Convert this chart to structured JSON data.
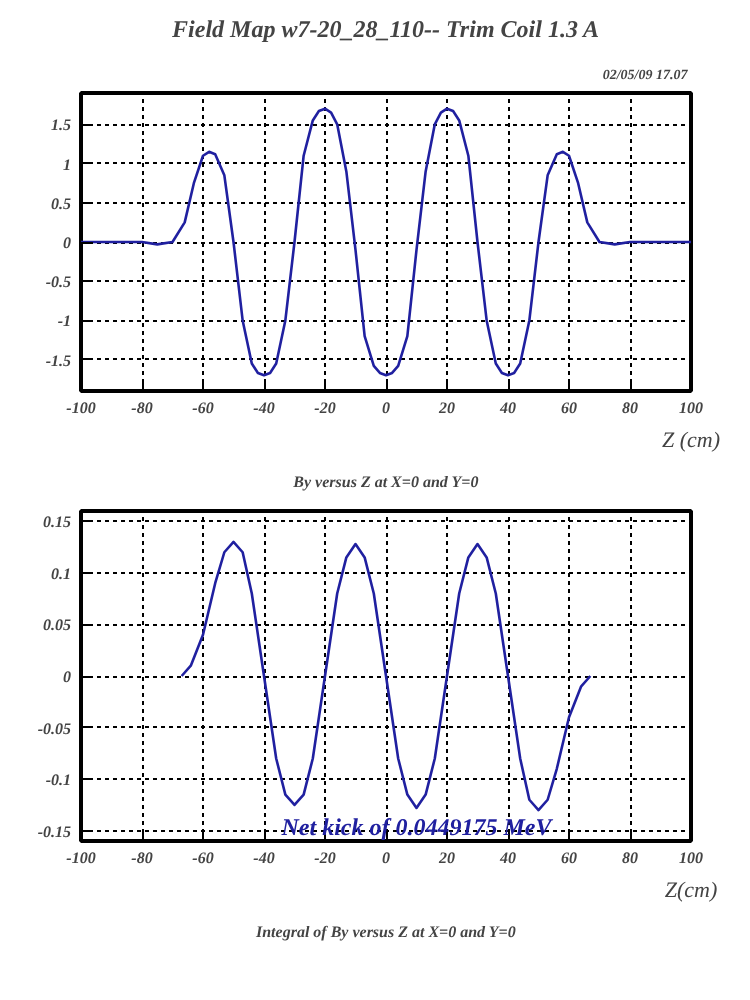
{
  "chart_data": [
    {
      "type": "line",
      "title": "Field Map w7-20_28_110-- Trim Coil 1.3 A",
      "xlabel": "Z (cm)",
      "annotations": [
        "By versus Z at X=0 and Y=0",
        "02/05/09  17.07"
      ],
      "xlim": [
        -100,
        100
      ],
      "ylim": [
        -1.9,
        1.9
      ],
      "xticks": [
        -100,
        -80,
        -60,
        -40,
        -20,
        0,
        20,
        40,
        60,
        80,
        100
      ],
      "yticks": [
        -1.5,
        -1,
        -0.5,
        0,
        0.5,
        1,
        1.5
      ],
      "grid": true,
      "line_style": "solid",
      "x": [
        -100,
        -80,
        -75,
        -70,
        -66,
        -63,
        -60,
        -58,
        -56,
        -53,
        -50,
        -47,
        -44,
        -42,
        -40,
        -38,
        -36,
        -33,
        -30,
        -27,
        -24,
        -22,
        -20,
        -18,
        -16,
        -13,
        -10,
        -7,
        -4,
        -2,
        0,
        2,
        4,
        7,
        10,
        13,
        16,
        18,
        20,
        22,
        24,
        27,
        30,
        33,
        36,
        38,
        40,
        42,
        44,
        47,
        50,
        53,
        56,
        58,
        60,
        63,
        66,
        70,
        75,
        80,
        100
      ],
      "series": [
        {
          "color": "#2020a0",
          "values": [
            0,
            0,
            -0.03,
            0,
            0.25,
            0.75,
            1.1,
            1.15,
            1.12,
            0.85,
            0,
            -1,
            -1.55,
            -1.67,
            -1.7,
            -1.67,
            -1.55,
            -1,
            0,
            1.1,
            1.55,
            1.67,
            1.7,
            1.65,
            1.5,
            0.9,
            -0.1,
            -1.2,
            -1.58,
            -1.67,
            -1.7,
            -1.67,
            -1.58,
            -1.2,
            -0.1,
            0.9,
            1.5,
            1.65,
            1.7,
            1.67,
            1.55,
            1.1,
            0,
            -1,
            -1.55,
            -1.67,
            -1.7,
            -1.67,
            -1.55,
            -1,
            0,
            0.85,
            1.12,
            1.15,
            1.1,
            0.75,
            0.25,
            0,
            -0.03,
            0,
            0
          ]
        }
      ]
    },
    {
      "type": "line",
      "xlabel": "Z(cm)",
      "annotations": [
        "Integral of By versus Z at X=0 and Y=0",
        "Net kick of 0.0449175 MeV"
      ],
      "xlim": [
        -100,
        100
      ],
      "ylim": [
        -0.16,
        0.16
      ],
      "xticks": [
        -100,
        -80,
        -60,
        -40,
        -20,
        0,
        20,
        40,
        60,
        80,
        100
      ],
      "yticks": [
        -0.15,
        -0.1,
        -0.05,
        0,
        0.05,
        0.1,
        0.15
      ],
      "grid": true,
      "line_style": "solid",
      "x": [
        -67,
        -64,
        -60,
        -56,
        -53,
        -50,
        -47,
        -44,
        -40,
        -36,
        -33,
        -30,
        -27,
        -24,
        -20,
        -16,
        -13,
        -10,
        -7,
        -4,
        0,
        4,
        7,
        10,
        13,
        16,
        20,
        24,
        27,
        30,
        33,
        36,
        40,
        44,
        47,
        50,
        53,
        56,
        60,
        64,
        67
      ],
      "series": [
        {
          "color": "#2020a0",
          "values": [
            0,
            0.01,
            0.04,
            0.09,
            0.12,
            0.13,
            0.12,
            0.08,
            0,
            -0.08,
            -0.115,
            -0.125,
            -0.115,
            -0.08,
            0,
            0.08,
            0.115,
            0.128,
            0.115,
            0.08,
            0,
            -0.08,
            -0.115,
            -0.128,
            -0.115,
            -0.08,
            0,
            0.08,
            0.115,
            0.128,
            0.115,
            0.08,
            0,
            -0.08,
            -0.12,
            -0.13,
            -0.12,
            -0.09,
            -0.04,
            -0.01,
            0
          ]
        }
      ]
    }
  ]
}
